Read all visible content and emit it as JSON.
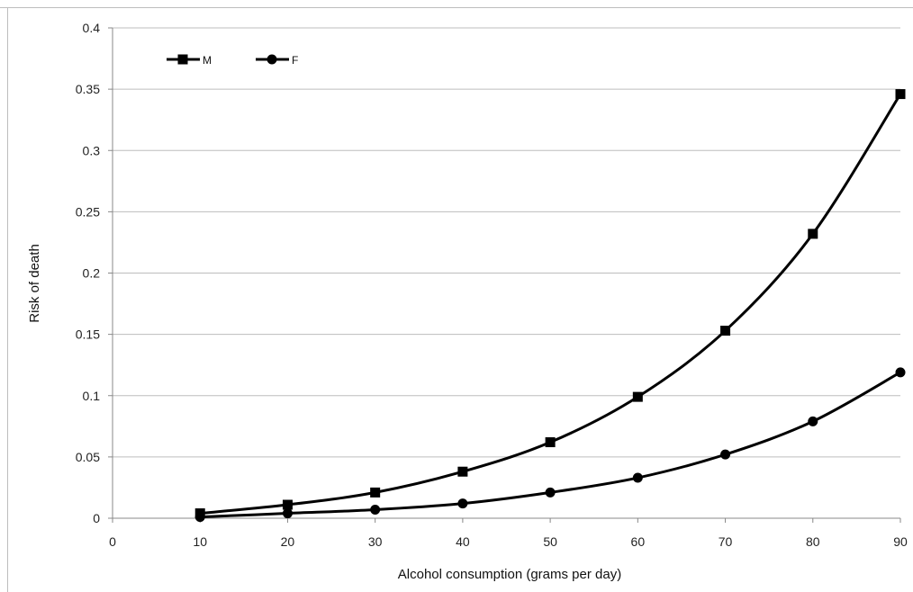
{
  "chart_data": {
    "type": "line",
    "title": "",
    "xlabel": "Alcohol consumption (grams per day)",
    "ylabel": "Risk of death",
    "xlim": [
      0,
      90
    ],
    "ylim": [
      0,
      0.4
    ],
    "xticks": [
      0,
      10,
      20,
      30,
      40,
      50,
      60,
      70,
      80,
      90
    ],
    "yticks": [
      {
        "value": 0,
        "label": "0"
      },
      {
        "value": 0.05,
        "label": "0.05"
      },
      {
        "value": 0.1,
        "label": "0.1"
      },
      {
        "value": 0.15,
        "label": "0.15"
      },
      {
        "value": 0.2,
        "label": "0.2"
      },
      {
        "value": 0.25,
        "label": "0.25"
      },
      {
        "value": 0.3,
        "label": "0.3"
      },
      {
        "value": 0.35,
        "label": "0.35"
      },
      {
        "value": 0.4,
        "label": "0.4"
      }
    ],
    "grid": true,
    "legend": "top-left",
    "x": [
      10,
      20,
      30,
      40,
      50,
      60,
      70,
      80,
      90
    ],
    "series": [
      {
        "name": "M",
        "marker": "square",
        "color": "#000000",
        "values": [
          0.004,
          0.011,
          0.021,
          0.038,
          0.062,
          0.099,
          0.153,
          0.232,
          0.346
        ]
      },
      {
        "name": "F",
        "marker": "circle",
        "color": "#000000",
        "values": [
          0.001,
          0.004,
          0.007,
          0.012,
          0.021,
          0.033,
          0.052,
          0.079,
          0.119
        ]
      }
    ]
  }
}
